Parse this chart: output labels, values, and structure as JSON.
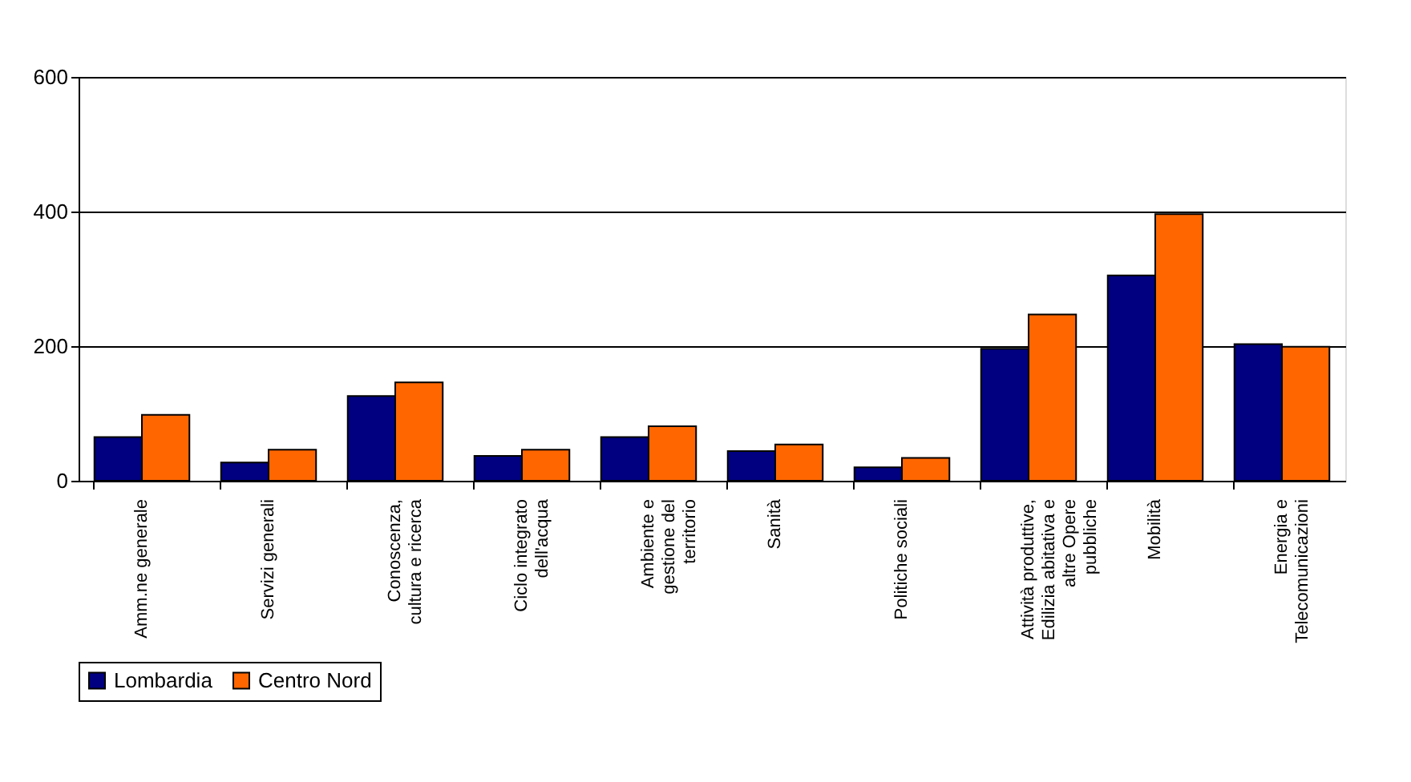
{
  "chart_data": {
    "type": "bar",
    "categories": [
      "Amm.ne generale",
      "Servizi generali",
      "Conoscenza,\ncultura e ricerca",
      "Ciclo integrato\ndell'acqua",
      "Ambiente e\ngestione del\nterritorio",
      "Sanità",
      "Politiche sociali",
      "Attività produttive,\nEdilizia abitativa e\naltre Opere\npubbliche",
      "Mobilità",
      "Energia e\nTelecomunicazioni"
    ],
    "series": [
      {
        "name": "Lombardia",
        "color": "#000080",
        "values": [
          65,
          27,
          126,
          37,
          65,
          44,
          20,
          196,
          305,
          203
        ]
      },
      {
        "name": "Centro Nord",
        "color": "#ff6600",
        "values": [
          98,
          46,
          146,
          46,
          81,
          54,
          34,
          247,
          396,
          199
        ]
      }
    ],
    "ylim": [
      0,
      600
    ],
    "yticks": [
      0,
      200,
      400,
      600
    ],
    "grid": "y",
    "legend": "bottom"
  }
}
